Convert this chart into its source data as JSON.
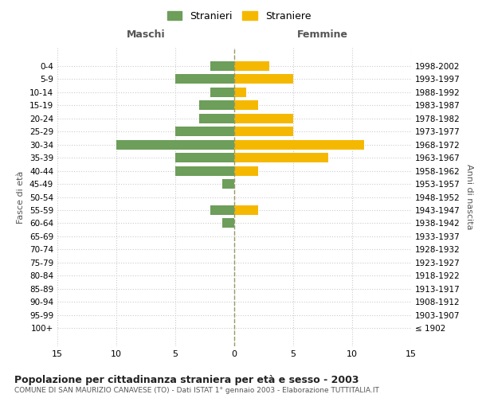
{
  "age_groups": [
    "0-4",
    "5-9",
    "10-14",
    "15-19",
    "20-24",
    "25-29",
    "30-34",
    "35-39",
    "40-44",
    "45-49",
    "50-54",
    "55-59",
    "60-64",
    "65-69",
    "70-74",
    "75-79",
    "80-84",
    "85-89",
    "90-94",
    "95-99",
    "100+"
  ],
  "birth_years": [
    "1998-2002",
    "1993-1997",
    "1988-1992",
    "1983-1987",
    "1978-1982",
    "1973-1977",
    "1968-1972",
    "1963-1967",
    "1958-1962",
    "1953-1957",
    "1948-1952",
    "1943-1947",
    "1938-1942",
    "1933-1937",
    "1928-1932",
    "1923-1927",
    "1918-1922",
    "1913-1917",
    "1908-1912",
    "1903-1907",
    "≤ 1902"
  ],
  "males": [
    2,
    5,
    2,
    3,
    3,
    5,
    10,
    5,
    5,
    1,
    0,
    2,
    1,
    0,
    0,
    0,
    0,
    0,
    0,
    0,
    0
  ],
  "females": [
    3,
    5,
    1,
    2,
    5,
    5,
    11,
    8,
    2,
    0,
    0,
    2,
    0,
    0,
    0,
    0,
    0,
    0,
    0,
    0,
    0
  ],
  "male_color": "#6d9e5a",
  "female_color": "#f5b800",
  "title": "Popolazione per cittadinanza straniera per età e sesso - 2003",
  "subtitle": "COMUNE DI SAN MAURIZIO CANAVESE (TO) - Dati ISTAT 1° gennaio 2003 - Elaborazione TUTTITALIA.IT",
  "xlabel_left": "Maschi",
  "xlabel_right": "Femmine",
  "ylabel_left": "Fasce di età",
  "ylabel_right": "Anni di nascita",
  "legend_male": "Stranieri",
  "legend_female": "Straniere",
  "xlim": 15,
  "background_color": "#ffffff",
  "grid_color": "#cccccc"
}
